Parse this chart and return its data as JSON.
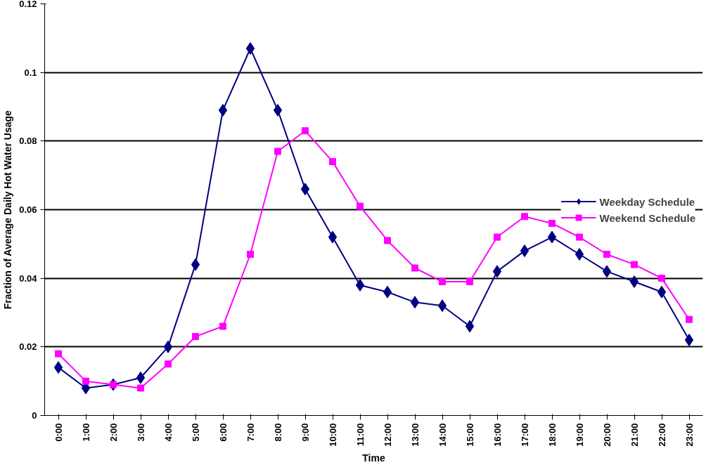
{
  "chart_data": {
    "type": "line",
    "xlabel": "Time",
    "ylabel": "Fraction of Average Daily Hot Water Usage",
    "categories": [
      "0:00",
      "1:00",
      "2:00",
      "3:00",
      "4:00",
      "5:00",
      "6:00",
      "7:00",
      "8:00",
      "9:00",
      "10:00",
      "11:00",
      "12:00",
      "13:00",
      "14:00",
      "15:00",
      "16:00",
      "17:00",
      "18:00",
      "19:00",
      "20:00",
      "21:00",
      "22:00",
      "23:00"
    ],
    "series": [
      {
        "name": "Weekday Schedule",
        "color": "#000080",
        "marker": "diamond",
        "values": [
          0.014,
          0.008,
          0.009,
          0.011,
          0.02,
          0.044,
          0.089,
          0.107,
          0.089,
          0.066,
          0.052,
          0.038,
          0.036,
          0.033,
          0.032,
          0.026,
          0.042,
          0.048,
          0.052,
          0.047,
          0.042,
          0.039,
          0.036,
          0.022
        ]
      },
      {
        "name": "Weekend Schedule",
        "color": "#ff00ff",
        "marker": "square",
        "values": [
          0.018,
          0.01,
          0.009,
          0.008,
          0.015,
          0.023,
          0.026,
          0.047,
          0.077,
          0.083,
          0.074,
          0.061,
          0.051,
          0.043,
          0.039,
          0.039,
          0.052,
          0.058,
          0.056,
          0.052,
          0.047,
          0.044,
          0.04,
          0.028
        ]
      }
    ],
    "ylim": [
      0,
      0.12
    ],
    "yticks": [
      0,
      0.02,
      0.04,
      0.06,
      0.08,
      0.1,
      0.12
    ],
    "grid": "y",
    "legend": "right",
    "line_style": "solid"
  }
}
